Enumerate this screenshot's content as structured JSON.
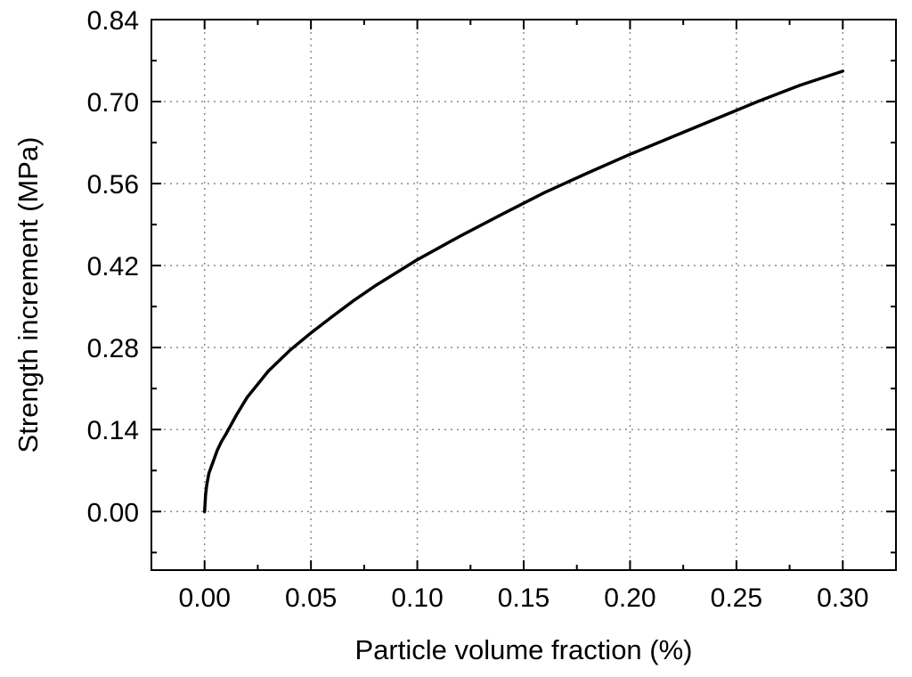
{
  "chart_data": {
    "type": "line",
    "title": "",
    "xlabel": "Particle volume fraction (%)",
    "ylabel": "Strength increment (MPa)",
    "xlim": [
      -0.025,
      0.325
    ],
    "ylim": [
      -0.1,
      0.84
    ],
    "x_ticks": [
      0.0,
      0.05,
      0.1,
      0.15,
      0.2,
      0.25,
      0.3
    ],
    "x_tick_labels": [
      "0.00",
      "0.05",
      "0.10",
      "0.15",
      "0.20",
      "0.25",
      "0.30"
    ],
    "y_ticks": [
      0.0,
      0.14,
      0.28,
      0.42,
      0.56,
      0.7,
      0.84
    ],
    "y_tick_labels": [
      "0.00",
      "0.14",
      "0.28",
      "0.42",
      "0.56",
      "0.70",
      "0.84"
    ],
    "grid": true,
    "series": [
      {
        "x": [
          0.0,
          0.0005,
          0.001,
          0.002,
          0.004,
          0.006,
          0.008,
          0.01,
          0.015,
          0.02,
          0.03,
          0.04,
          0.05,
          0.06,
          0.07,
          0.08,
          0.1,
          0.12,
          0.14,
          0.16,
          0.18,
          0.2,
          0.22,
          0.24,
          0.26,
          0.28,
          0.3
        ],
        "y": [
          0.0,
          0.03,
          0.045,
          0.065,
          0.085,
          0.105,
          0.12,
          0.132,
          0.165,
          0.195,
          0.24,
          0.275,
          0.305,
          0.333,
          0.36,
          0.385,
          0.43,
          0.47,
          0.508,
          0.545,
          0.578,
          0.61,
          0.64,
          0.67,
          0.7,
          0.728,
          0.752
        ]
      }
    ]
  }
}
